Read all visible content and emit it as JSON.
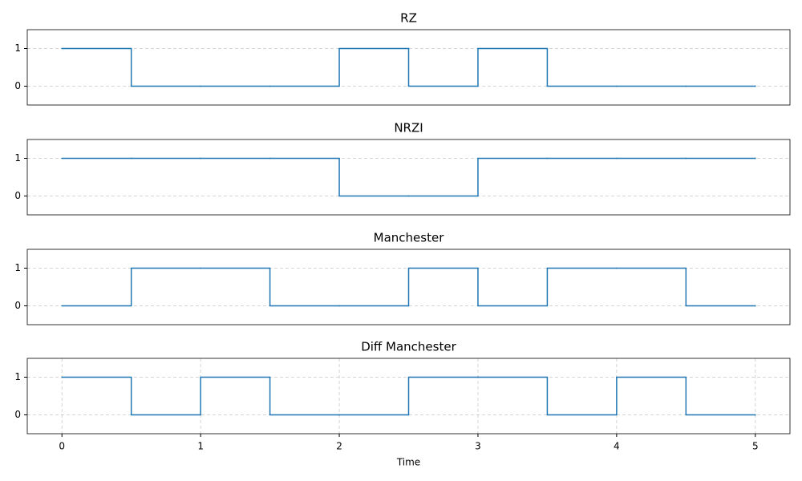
{
  "chart_data": [
    {
      "type": "step",
      "title": "RZ",
      "x": [
        0,
        0.5,
        1,
        1.5,
        2,
        2.5,
        3,
        3.5,
        4,
        4.5,
        5
      ],
      "series": [
        {
          "color": "#1f77b4",
          "values": [
            1,
            0,
            0,
            0,
            1,
            0,
            1,
            0,
            0,
            0,
            0
          ]
        }
      ],
      "xlim": [
        -0.25,
        5.25
      ],
      "ylim": [
        -0.5,
        1.5
      ],
      "yticks": [
        0,
        1
      ],
      "grid": "y"
    },
    {
      "type": "step",
      "title": "NRZI",
      "x": [
        0,
        0.5,
        1,
        1.5,
        2,
        2.5,
        3,
        3.5,
        4,
        4.5,
        5
      ],
      "series": [
        {
          "color": "#1f77b4",
          "values": [
            1,
            1,
            1,
            1,
            0,
            0,
            1,
            1,
            1,
            1,
            1
          ]
        }
      ],
      "xlim": [
        -0.25,
        5.25
      ],
      "ylim": [
        -0.5,
        1.5
      ],
      "yticks": [
        0,
        1
      ],
      "grid": "y"
    },
    {
      "type": "step",
      "title": "Manchester",
      "x": [
        0,
        0.5,
        1,
        1.5,
        2,
        2.5,
        3,
        3.5,
        4,
        4.5,
        5
      ],
      "series": [
        {
          "color": "#1f77b4",
          "values": [
            0,
            1,
            1,
            0,
            0,
            1,
            0,
            1,
            1,
            0,
            0
          ]
        }
      ],
      "xlim": [
        -0.25,
        5.25
      ],
      "ylim": [
        -0.5,
        1.5
      ],
      "yticks": [
        0,
        1
      ],
      "grid": "y"
    },
    {
      "type": "step",
      "title": "Diff Manchester",
      "x": [
        0,
        0.5,
        1,
        1.5,
        2,
        2.5,
        3,
        3.5,
        4,
        4.5,
        5
      ],
      "series": [
        {
          "color": "#1f77b4",
          "values": [
            1,
            0,
            1,
            0,
            0,
            1,
            1,
            0,
            1,
            0,
            0
          ]
        }
      ],
      "xlim": [
        -0.25,
        5.25
      ],
      "ylim": [
        -0.5,
        1.5
      ],
      "yticks": [
        0,
        1
      ],
      "xticks": [
        0,
        1,
        2,
        3,
        4,
        5
      ],
      "x_label": "Time",
      "grid": "both"
    }
  ]
}
